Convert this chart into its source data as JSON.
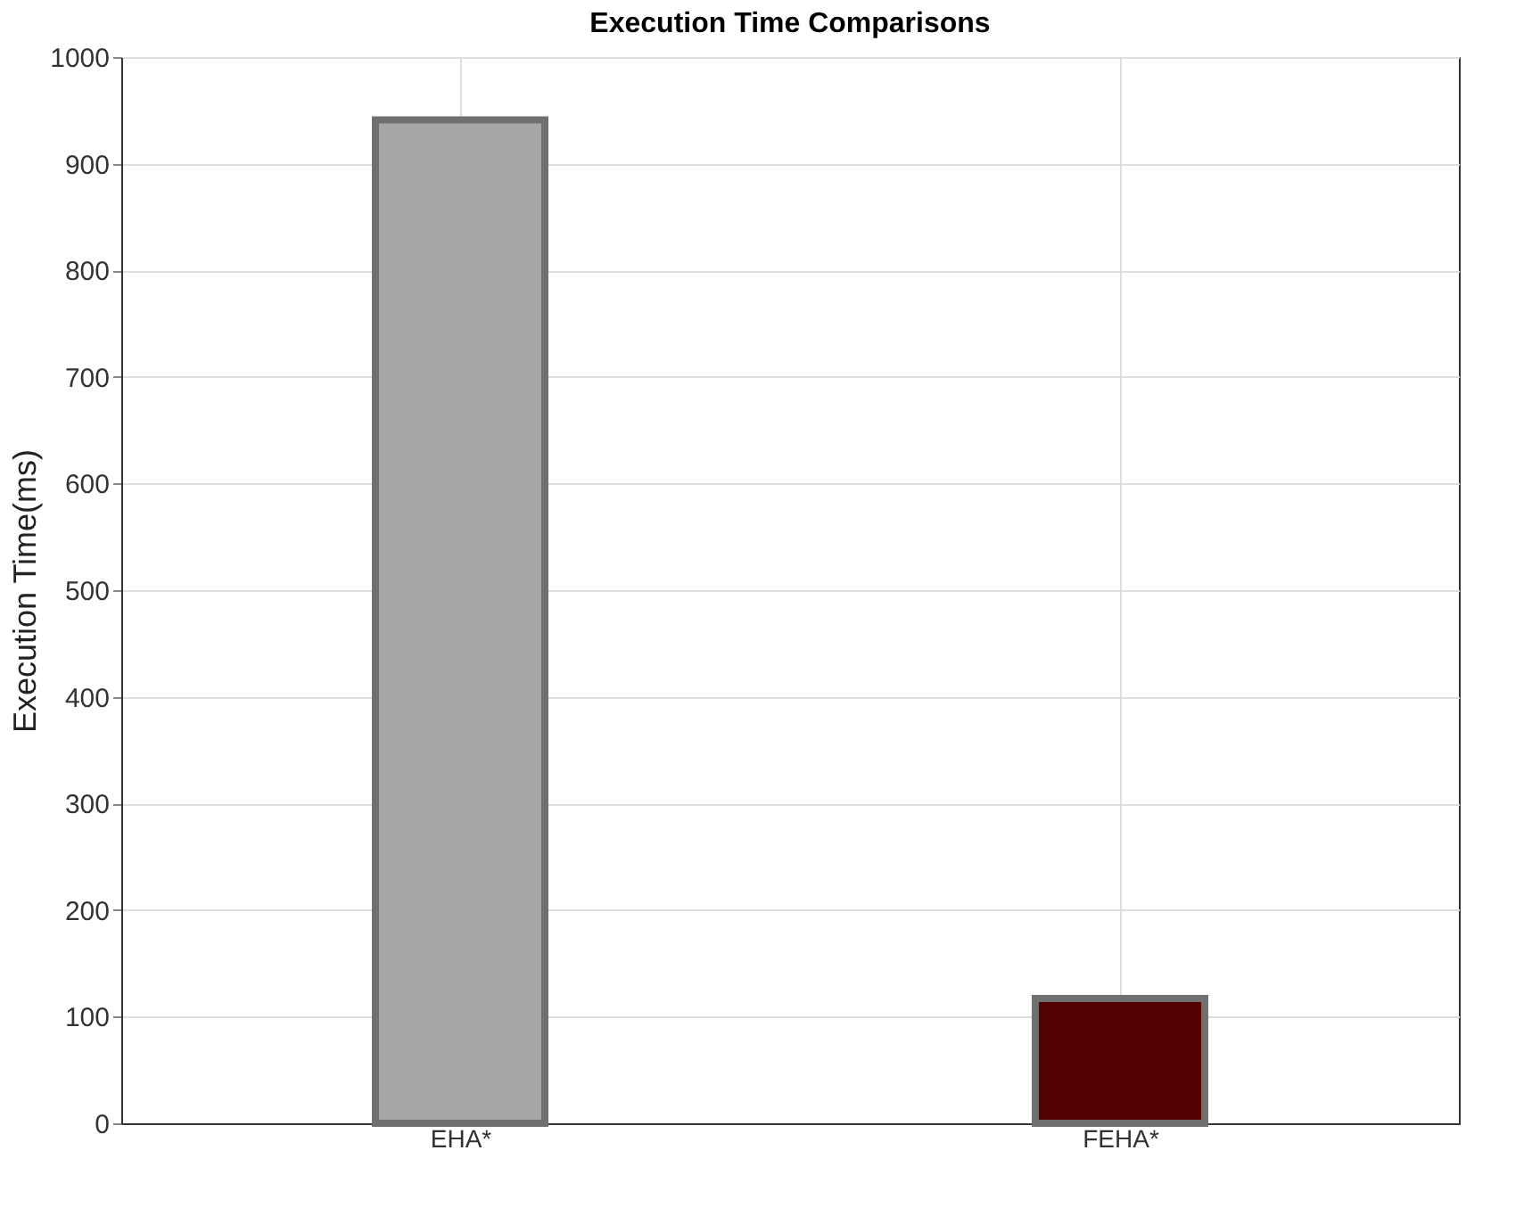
{
  "chart_data": {
    "type": "bar",
    "title": "Execution Time Comparisons",
    "ylabel": "Execution Time(ms)",
    "categories": [
      "EHA*",
      "FEHA*"
    ],
    "values": [
      941,
      117
    ],
    "colors": [
      "#a6a6a6",
      "#520000"
    ],
    "ylim": [
      0,
      1000
    ],
    "yticks": [
      0,
      100,
      200,
      300,
      400,
      500,
      600,
      700,
      800,
      900,
      1000
    ],
    "grid": true
  }
}
